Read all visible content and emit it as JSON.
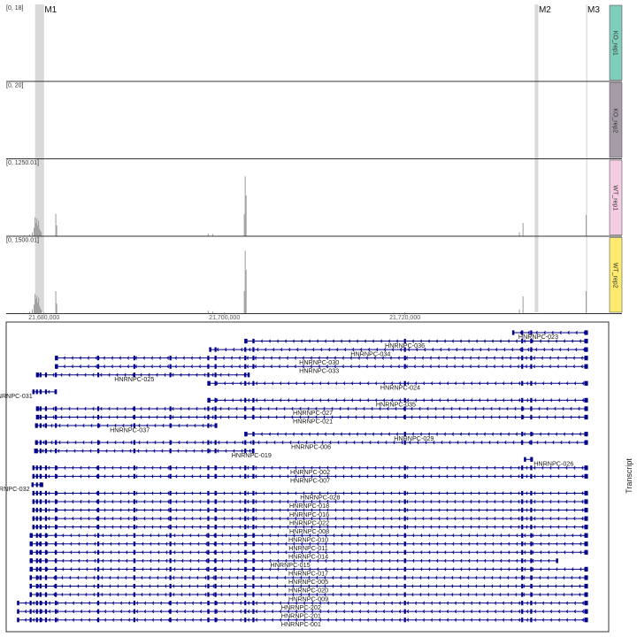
{
  "markers": [
    {
      "label": "M1",
      "start": 21679000,
      "end": 21680000
    },
    {
      "label": "M2",
      "start": 21734400,
      "end": 21734800
    },
    {
      "label": "M3",
      "start": 21740100,
      "end": 21740200
    }
  ],
  "axis": {
    "domain": [
      21675800,
      21742600
    ],
    "ticks": [
      {
        "value": 21680000,
        "label": "21,680,000"
      },
      {
        "value": 21700000,
        "label": "21,700,000"
      },
      {
        "value": 21720000,
        "label": "21,720,000"
      }
    ]
  },
  "tracks": [
    {
      "name": "KO_rep1",
      "range": "[0, 18]",
      "max": 18,
      "color": "#7fcdbb",
      "peaks": []
    },
    {
      "name": "KO_rep2",
      "range": "[0, 20]",
      "max": 20,
      "color": "#a69ca8",
      "peaks": []
    },
    {
      "name": "WT_rep1",
      "range": "[0, 1250.01]",
      "max": 1250.01,
      "color": "#f4cde3",
      "peaks": [
        [
          21677800,
          10
        ],
        [
          21678400,
          25
        ],
        [
          21678700,
          60
        ],
        [
          21678900,
          140
        ],
        [
          21679000,
          320
        ],
        [
          21679100,
          220
        ],
        [
          21679200,
          300
        ],
        [
          21679300,
          180
        ],
        [
          21679400,
          260
        ],
        [
          21679500,
          120
        ],
        [
          21679600,
          90
        ],
        [
          21679700,
          60
        ],
        [
          21681300,
          380
        ],
        [
          21681400,
          180
        ],
        [
          21698200,
          40
        ],
        [
          21698700,
          30
        ],
        [
          21702200,
          380
        ],
        [
          21702300,
          1030
        ],
        [
          21702400,
          700
        ],
        [
          21733100,
          220
        ],
        [
          21732700,
          60
        ],
        [
          21740100,
          360
        ]
      ]
    },
    {
      "name": "WT_rep2",
      "range": "[0, 1500.01]",
      "max": 1500.01,
      "color": "#fdea6f",
      "peaks": [
        [
          21677800,
          10
        ],
        [
          21678400,
          30
        ],
        [
          21678700,
          80
        ],
        [
          21678900,
          180
        ],
        [
          21679000,
          400
        ],
        [
          21679100,
          300
        ],
        [
          21679200,
          360
        ],
        [
          21679300,
          220
        ],
        [
          21679400,
          320
        ],
        [
          21679500,
          150
        ],
        [
          21679600,
          100
        ],
        [
          21679700,
          70
        ],
        [
          21681300,
          460
        ],
        [
          21681400,
          200
        ],
        [
          21698200,
          50
        ],
        [
          21698700,
          40
        ],
        [
          21702200,
          460
        ],
        [
          21702300,
          1300
        ],
        [
          21702400,
          900
        ],
        [
          21733100,
          350
        ],
        [
          21732700,
          80
        ],
        [
          21740100,
          460
        ]
      ]
    }
  ],
  "transcripts_title": "Transcript",
  "transcripts": [
    {
      "name": "HNRNPC-023",
      "start": 21731900,
      "end": 21740300,
      "label_x": 21734800
    },
    {
      "name": "HNRNPC-036",
      "start": 21702300,
      "end": 21740300,
      "label_x": 21720000
    },
    {
      "name": "HNRNPC-034",
      "start": 21698300,
      "end": 21740300,
      "label_x": 21716200
    },
    {
      "name": "HNRNPC-030",
      "start": 21681300,
      "end": 21740300,
      "label_x": 21710500
    },
    {
      "name": "HNRNPC-033",
      "start": 21681300,
      "end": 21740300,
      "label_x": 21710500
    },
    {
      "name": "HNRNPC-025",
      "start": 21679200,
      "end": 21702800,
      "label_x": 21690000
    },
    {
      "name": "HNRNPC-024",
      "start": 21698200,
      "end": 21740300,
      "label_x": 21719500
    },
    {
      "name": "HNRNPC-031",
      "start": 21678700,
      "end": 21681400,
      "label_x": 21676500
    },
    {
      "name": "HNRNPC-035",
      "start": 21698200,
      "end": 21740300,
      "label_x": 21719000
    },
    {
      "name": "HNRNPC-027",
      "start": 21679200,
      "end": 21740300,
      "label_x": 21709800
    },
    {
      "name": "HNRNPC-021",
      "start": 21679200,
      "end": 21740300,
      "label_x": 21709800
    },
    {
      "name": "HNRNPC-037",
      "start": 21679000,
      "end": 21699200,
      "label_x": 21689500
    },
    {
      "name": "HNRNPC-029",
      "start": 21702300,
      "end": 21740300,
      "label_x": 21721000
    },
    {
      "name": "HNRNPC-006",
      "start": 21679000,
      "end": 21740300,
      "label_x": 21709600
    },
    {
      "name": "HNRNPC-019",
      "start": 21678900,
      "end": 21703300,
      "label_x": 21703000
    },
    {
      "name": "HNRNPC-026",
      "start": 21733200,
      "end": 21734200,
      "label_x": 21736500
    },
    {
      "name": "HNRNPC-002",
      "start": 21678700,
      "end": 21740300,
      "label_x": 21709500
    },
    {
      "name": "HNRNPC-007",
      "start": 21678700,
      "end": 21740300,
      "label_x": 21709500
    },
    {
      "name": "HNRNPC-032",
      "start": 21678600,
      "end": 21679900,
      "label_x": 21676200
    },
    {
      "name": "HNRNPC-028",
      "start": 21678700,
      "end": 21740300,
      "label_x": 21710600
    },
    {
      "name": "HNRNPC-018",
      "start": 21678700,
      "end": 21740300,
      "label_x": 21709400
    },
    {
      "name": "HNRNPC-016",
      "start": 21678700,
      "end": 21740300,
      "label_x": 21709400
    },
    {
      "name": "HNRNPC-022",
      "start": 21678700,
      "end": 21740300,
      "label_x": 21709400
    },
    {
      "name": "HNRNPC-008",
      "start": 21678700,
      "end": 21740300,
      "label_x": 21709400
    },
    {
      "name": "HNRNPC-010",
      "start": 21678500,
      "end": 21740300,
      "label_x": 21709300
    },
    {
      "name": "HNRNPC-011",
      "start": 21678500,
      "end": 21740300,
      "label_x": 21709300
    },
    {
      "name": "HNRNPC-014",
      "start": 21678500,
      "end": 21740300,
      "label_x": 21709300
    },
    {
      "name": "HNRNPC-015",
      "start": 21678500,
      "end": 21737000,
      "label_x": 21707300
    },
    {
      "name": "HNRNPC-017",
      "start": 21678500,
      "end": 21740300,
      "label_x": 21709300
    },
    {
      "name": "HNRNPC-005",
      "start": 21678400,
      "end": 21740300,
      "label_x": 21709300
    },
    {
      "name": "HNRNPC-020",
      "start": 21678400,
      "end": 21740300,
      "label_x": 21709300
    },
    {
      "name": "HNRNPC-009",
      "start": 21678400,
      "end": 21740300,
      "label_x": 21709300
    },
    {
      "name": "HNRNPC-202",
      "start": 21677000,
      "end": 21740300,
      "label_x": 21708500
    },
    {
      "name": "HNRNPC-201",
      "start": 21677000,
      "end": 21740300,
      "label_x": 21708500
    },
    {
      "name": "HNRNPC-001",
      "start": 21677000,
      "end": 21740300,
      "label_x": 21708500
    }
  ],
  "colors": {
    "gene": "#00008b",
    "marker": "#d9d9d9",
    "signal": "#9a9a9a",
    "frame": "#333333"
  }
}
